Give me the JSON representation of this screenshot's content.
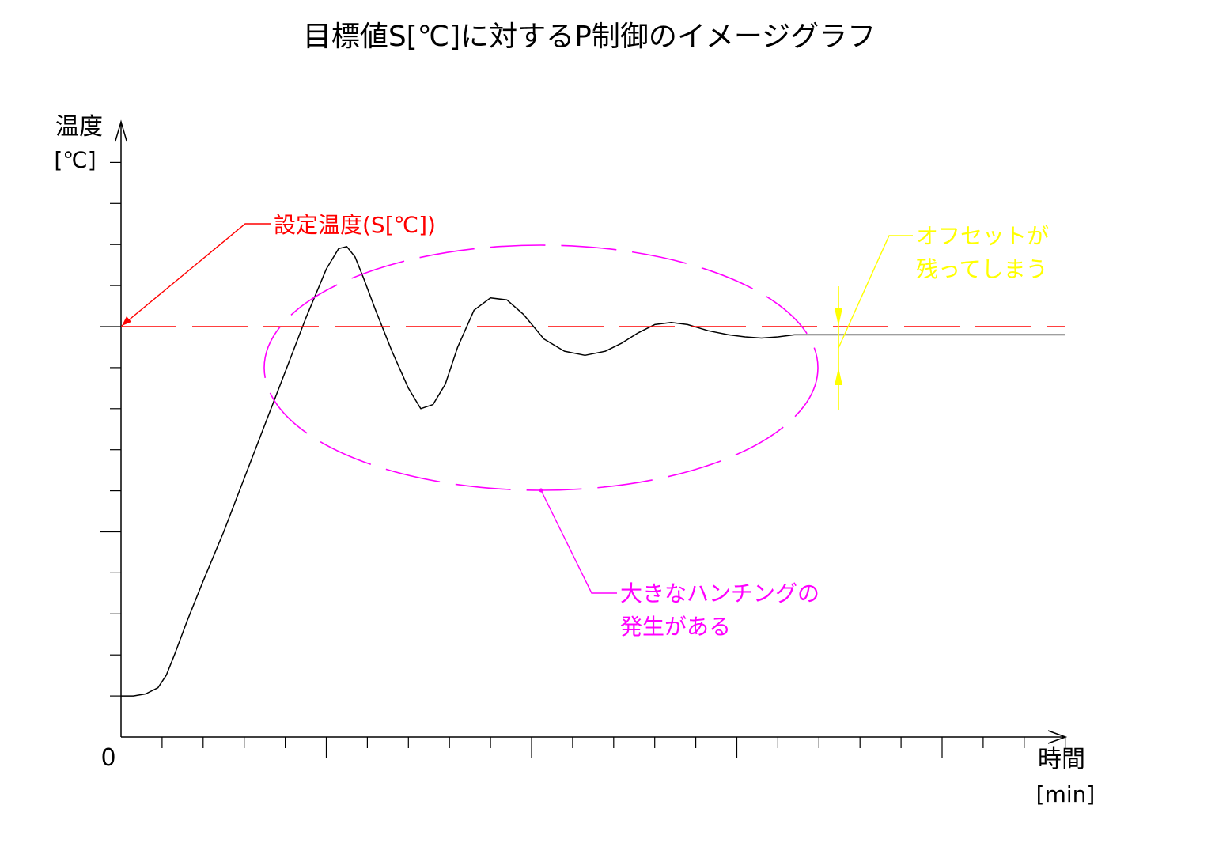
{
  "chart_data": {
    "type": "line",
    "title": "目標値S[℃]に対するP制御のイメージグラフ",
    "ylabel": "温度",
    "yunit": "[℃]",
    "xlabel": "時間",
    "xunit": "[min]",
    "origin_label": "0",
    "xlim": [
      0,
      23
    ],
    "ylim": [
      0,
      14
    ],
    "grid": false,
    "series": [
      {
        "name": "",
        "color": "#000000",
        "x": [
          0,
          0.3,
          0.6,
          0.9,
          1.1,
          1.3,
          1.6,
          2,
          2.5,
          3,
          3.5,
          4,
          4.5,
          5.0,
          5.3,
          5.5,
          5.7,
          5.9,
          6.2,
          6.6,
          7.0,
          7.3,
          7.6,
          7.9,
          8.2,
          8.6,
          9.0,
          9.4,
          9.8,
          10.3,
          10.8,
          11.3,
          11.8,
          12.2,
          12.6,
          13.0,
          13.4,
          13.8,
          14.3,
          14.8,
          15.2,
          15.6,
          16.0,
          16.4,
          16.8,
          17.2,
          17.6,
          18.0,
          19,
          20,
          21,
          22,
          23
        ],
        "y": [
          1.0,
          1.0,
          1.05,
          1.2,
          1.5,
          2.0,
          2.8,
          3.8,
          5.0,
          6.3,
          7.6,
          8.9,
          10.2,
          11.4,
          11.9,
          11.95,
          11.7,
          11.2,
          10.4,
          9.4,
          8.5,
          8.0,
          8.1,
          8.6,
          9.5,
          10.4,
          10.7,
          10.65,
          10.3,
          9.7,
          9.4,
          9.3,
          9.4,
          9.6,
          9.85,
          10.05,
          10.1,
          10.05,
          9.9,
          9.8,
          9.75,
          9.72,
          9.75,
          9.8,
          9.8,
          9.8,
          9.8,
          9.8,
          9.8,
          9.8,
          9.8,
          9.8,
          9.8
        ]
      },
      {
        "name": "",
        "color": "#ff0000",
        "style": "dashed",
        "x": [
          0,
          23
        ],
        "y": [
          10.0,
          10.0
        ]
      }
    ],
    "annotations": {
      "setpoint": {
        "text": "設定温度(S[℃])",
        "color": "#ff0000"
      },
      "offset": {
        "lines": [
          "オフセットが",
          "残ってしまう"
        ],
        "color": "#ffff00"
      },
      "hunting": {
        "lines": [
          "大きなハンチングの",
          "発生がある"
        ],
        "color": "#ff00ff"
      }
    }
  }
}
